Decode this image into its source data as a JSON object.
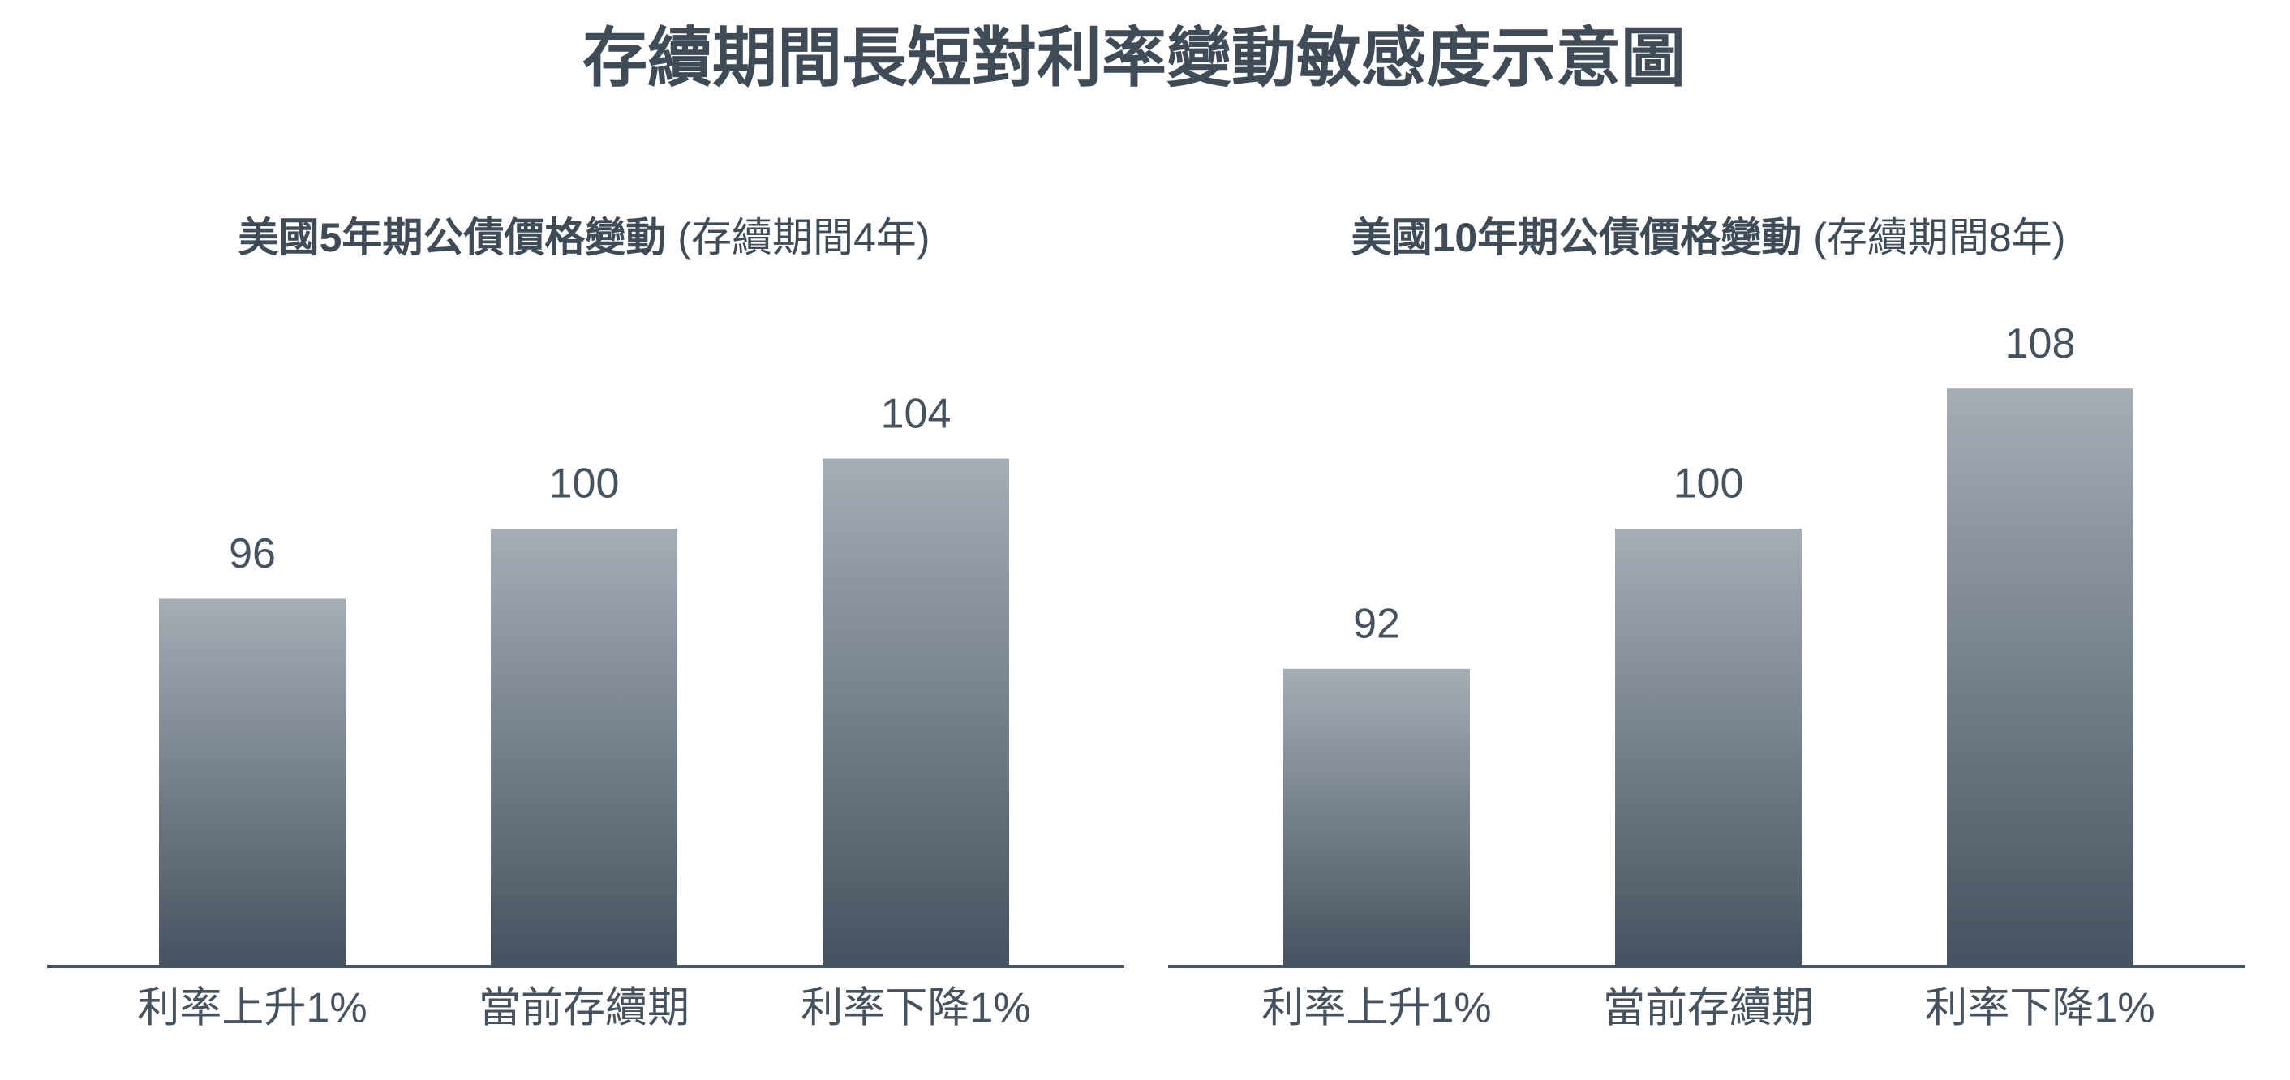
{
  "title": "存續期間長短對利率變動敏感度示意圖",
  "chart_data": [
    {
      "type": "bar",
      "title": "美國5年期公債價格變動",
      "subtitle": "(存續期間4年)",
      "categories": [
        "利率上升1%",
        "當前存續期",
        "利率下降1%"
      ],
      "values": [
        96,
        100,
        104
      ],
      "gradient": [
        "#a5adb5",
        "#45525f"
      ],
      "ylim": [
        75,
        115
      ]
    },
    {
      "type": "bar",
      "title": "美國10年期公債價格變動",
      "subtitle": "(存續期間8年)",
      "categories": [
        "利率上升1%",
        "當前存續期",
        "利率下降1%"
      ],
      "values": [
        92,
        100,
        108
      ],
      "gradient": [
        "#a5adb5",
        "#45525f"
      ],
      "ylim": [
        75,
        115
      ]
    }
  ]
}
